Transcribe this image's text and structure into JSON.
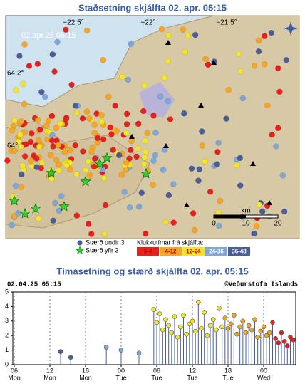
{
  "map": {
    "title": "Staðsetning skjálfta   02. apr. 05:15",
    "timestamp": "02.apr.25 05:15",
    "lon_labels": [
      "−22.5°",
      "−22°",
      "−21.5°"
    ],
    "lat_labels": [
      "64.2°",
      "64°"
    ],
    "scale": {
      "unit": "km",
      "labels": [
        "0",
        "10",
        "20"
      ]
    },
    "legend": {
      "small": "Stærð undir 3",
      "large": "Stærð yfir 3",
      "hours_title": "Klukkutímar frá skjálfta:"
    }
  },
  "chart_data": {
    "type": "stem",
    "title": "Tímasetning og stærð skjálfta   02. apr. 05:15",
    "header_left": "02.04.25 05:15",
    "header_right": "©Veðurstofa Íslands",
    "xlim": [
      5.76,
      53.4
    ],
    "ylim": [
      0,
      5
    ],
    "yticks": [
      0,
      1,
      2,
      3,
      4,
      5
    ],
    "grid": true,
    "xticks": [
      {
        "value": 6,
        "label": "06",
        "day": "Mon"
      },
      {
        "value": 12,
        "label": "12",
        "day": "Mon"
      },
      {
        "value": 18,
        "label": "18",
        "day": "Mon"
      },
      {
        "value": 24,
        "label": "00",
        "day": "Tue"
      },
      {
        "value": 30,
        "label": "06",
        "day": "Tue"
      },
      {
        "value": 36,
        "label": "12",
        "day": "Tue"
      },
      {
        "value": 42,
        "label": "18",
        "day": "Tue"
      },
      {
        "value": 48,
        "label": "00",
        "day": "Wed"
      }
    ],
    "series": [
      {
        "name": "0-4",
        "color": "#e8201c",
        "x": [
          49.5,
          50,
          50.5,
          51,
          51.5,
          52,
          52.5,
          53
        ],
        "values": [
          2.9,
          1.8,
          1.5,
          2.2,
          1.6,
          1.3,
          1.9,
          1.7
        ]
      },
      {
        "name": "4-12",
        "color": "#f5a623",
        "x": [
          41.5,
          42,
          42.5,
          43,
          43.5,
          44,
          44.5,
          45,
          45.5,
          46,
          46.5,
          47,
          47.5,
          48,
          48.5,
          49
        ],
        "values": [
          3.2,
          2.5,
          2.8,
          3.4,
          2.1,
          2.6,
          3.0,
          2.2,
          2.7,
          2.4,
          3.1,
          1.9,
          2.3,
          2.6,
          2.0,
          2.2
        ]
      },
      {
        "name": "12-24",
        "color": "#f2e52a",
        "x": [
          29.5,
          30,
          30.5,
          31,
          31.5,
          32,
          32.5,
          33,
          33.5,
          34,
          34.5,
          35,
          35.5,
          36,
          36.5,
          37,
          37.5,
          38,
          38.5,
          39,
          39.5,
          40,
          40.5,
          41
        ],
        "values": [
          3.8,
          2.9,
          3.5,
          2.4,
          3.1,
          2.7,
          2.2,
          3.3,
          1.9,
          2.6,
          3.4,
          2.1,
          2.8,
          3.0,
          2.3,
          4.3,
          2.5,
          3.6,
          2.0,
          2.7,
          3.1,
          2.4,
          3.9,
          2.6
        ]
      },
      {
        "name": "24-36",
        "color": "#7fa8d8",
        "x": [
          21.5,
          24,
          27
        ],
        "values": [
          1.2,
          1.0,
          0.8
        ]
      },
      {
        "name": "36-48",
        "color": "#4a5f9a",
        "x": [
          13.8,
          15.5
        ],
        "values": [
          0.9,
          0.5
        ]
      }
    ]
  }
}
